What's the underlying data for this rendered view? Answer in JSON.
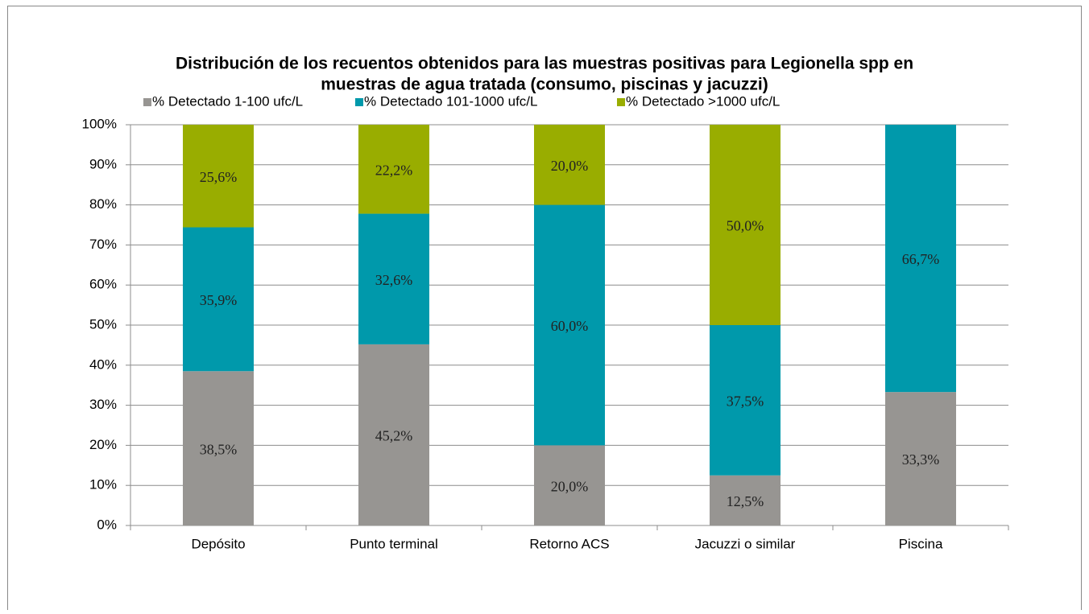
{
  "chart_data": {
    "type": "stacked_bar",
    "title": [
      "Distribución de los recuentos obtenidos para las muestras positivas para Legionella spp en",
      "muestras de agua tratada (consumo, piscinas y jacuzzi)"
    ],
    "categories": [
      "Depósito",
      "Punto terminal",
      "Retorno ACS",
      "Jacuzzi o similar",
      "Piscina"
    ],
    "series": [
      {
        "name": "% Detectado 1-100 ufc/L",
        "color": "#979592",
        "values": [
          38.5,
          45.2,
          20.0,
          12.5,
          33.3
        ],
        "value_labels": [
          "38,5%",
          "45,2%",
          "20,0%",
          "12,5%",
          "33,3%"
        ]
      },
      {
        "name": "% Detectado 101-1000 ufc/L",
        "color": "#0099ab",
        "values": [
          35.9,
          32.6,
          60.0,
          37.5,
          66.7
        ],
        "value_labels": [
          "35,9%",
          "32,6%",
          "60,0%",
          "37,5%",
          "66,7%"
        ]
      },
      {
        "name": "% Detectado >1000 ufc/L",
        "color": "#99ad00",
        "values": [
          25.6,
          22.2,
          20.0,
          50.0,
          null
        ],
        "value_labels": [
          "25,6%",
          "22,2%",
          "20,0%",
          "50,0%",
          null
        ]
      }
    ],
    "ylim": [
      0,
      100
    ],
    "yticks": [
      {
        "value": 0,
        "label": "0%"
      },
      {
        "value": 10,
        "label": "10%"
      },
      {
        "value": 20,
        "label": "20%"
      },
      {
        "value": 30,
        "label": "30%"
      },
      {
        "value": 40,
        "label": "40%"
      },
      {
        "value": 50,
        "label": "50%"
      },
      {
        "value": 60,
        "label": "60%"
      },
      {
        "value": 70,
        "label": "70%"
      },
      {
        "value": 80,
        "label": "80%"
      },
      {
        "value": 90,
        "label": "90%"
      },
      {
        "value": 100,
        "label": "100%"
      }
    ],
    "grid": true,
    "legend": "top"
  }
}
